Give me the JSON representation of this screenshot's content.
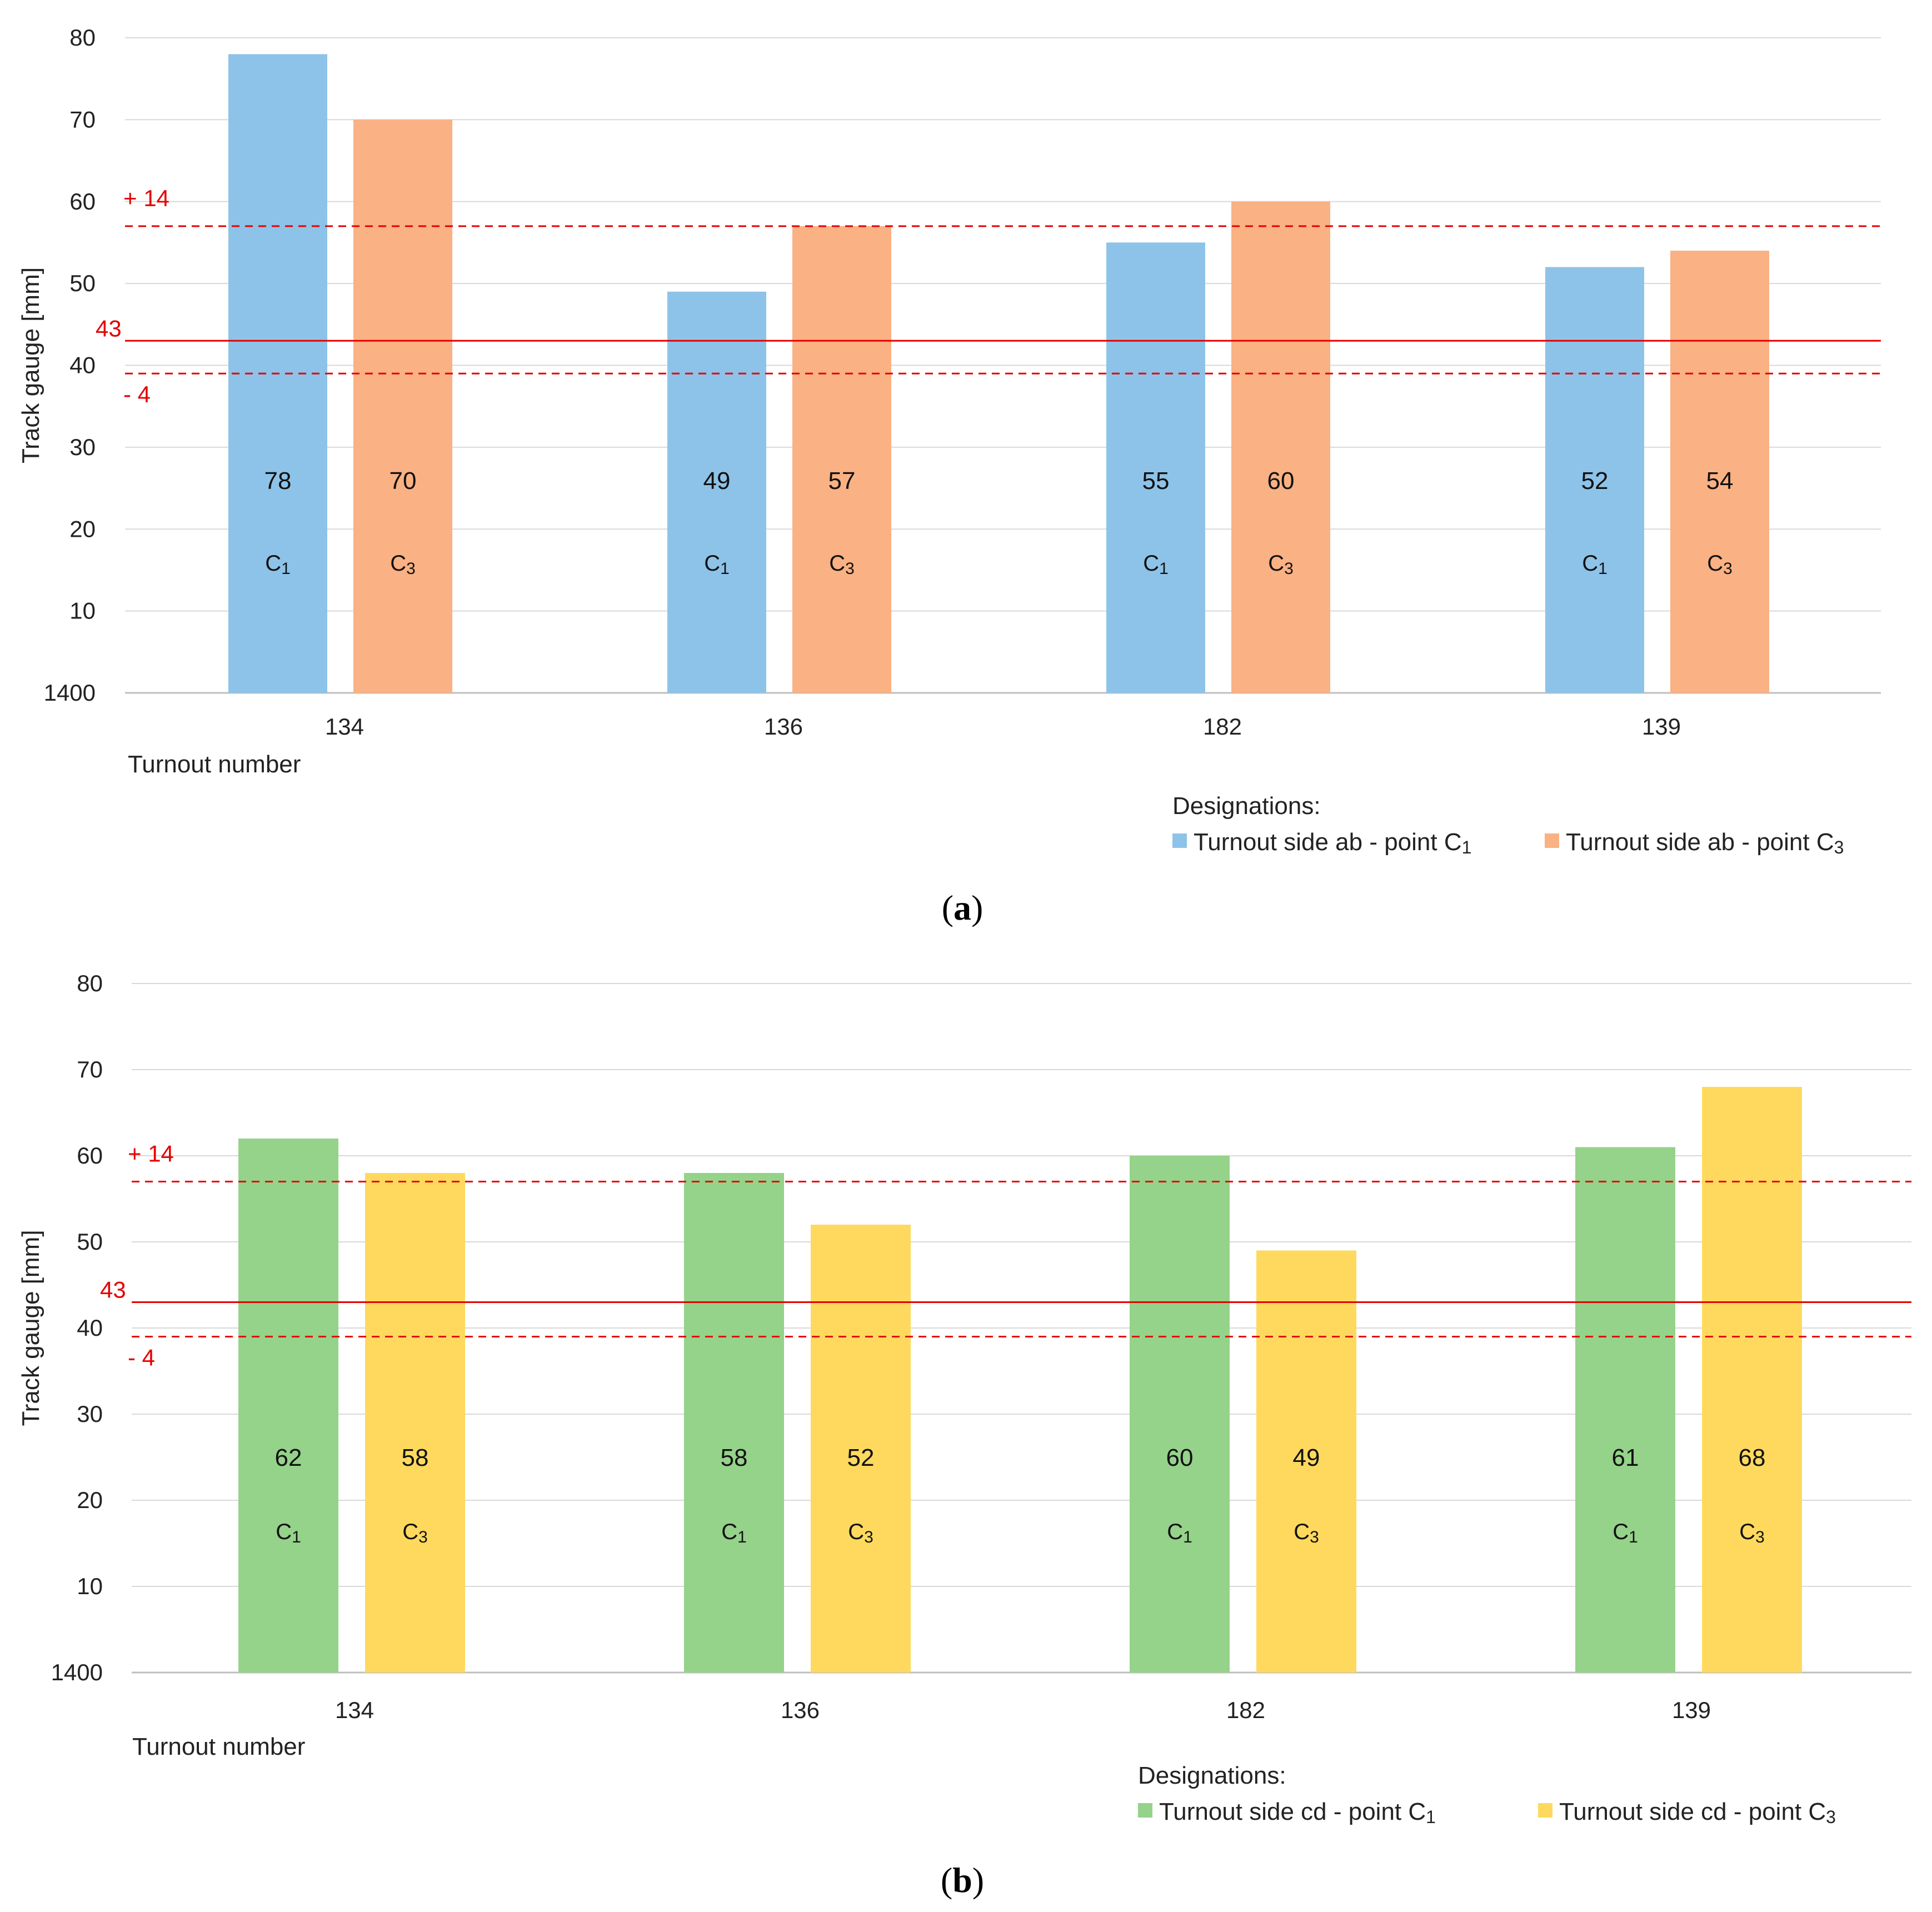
{
  "chart_data": [
    {
      "type": "bar",
      "panel": "a",
      "caption_label": "a",
      "categories": [
        "134",
        "136",
        "182",
        "139"
      ],
      "series": [
        {
          "name": "Turnout side ab - point",
          "point": "C1",
          "bar_label": "C1",
          "color": "#8DC3E8",
          "values": [
            78,
            49,
            55,
            52
          ]
        },
        {
          "name": "Turnout side ab - point",
          "point": "C3",
          "bar_label": "C3",
          "color": "#FAB183",
          "values": [
            70,
            57,
            60,
            54
          ]
        }
      ],
      "y_ticks": [
        "1400",
        "10",
        "20",
        "30",
        "40",
        "50",
        "60",
        "70",
        "80"
      ],
      "ylim": [
        0,
        80
      ],
      "ylabel": "Track gauge [mm]",
      "xlabel": "Turnout number",
      "reference_lines": {
        "nominal": {
          "value": 43,
          "label": "43"
        },
        "upper": {
          "value": 57,
          "label": "+ 14"
        },
        "lower": {
          "value": 39,
          "label": "- 4"
        }
      },
      "legend_title": "Designations:",
      "ref_color": "#e60000"
    },
    {
      "type": "bar",
      "panel": "b",
      "caption_label": "b",
      "categories": [
        "134",
        "136",
        "182",
        "139"
      ],
      "series": [
        {
          "name": "Turnout side cd - point",
          "point": "C1",
          "bar_label": "C1",
          "color": "#95D28A",
          "values": [
            62,
            58,
            60,
            61
          ]
        },
        {
          "name": "Turnout side cd - point",
          "point": "C3",
          "bar_label": "C3",
          "color": "#FED95E",
          "values": [
            58,
            52,
            49,
            68
          ]
        }
      ],
      "y_ticks": [
        "1400",
        "10",
        "20",
        "30",
        "40",
        "50",
        "60",
        "70",
        "80"
      ],
      "ylim": [
        0,
        80
      ],
      "ylabel": "Track gauge [mm]",
      "xlabel": "Turnout number",
      "reference_lines": {
        "nominal": {
          "value": 43,
          "label": "43"
        },
        "upper": {
          "value": 57,
          "label": "+ 14"
        },
        "lower": {
          "value": 39,
          "label": "- 4"
        }
      },
      "legend_title": "Designations:",
      "ref_color": "#e60000"
    }
  ]
}
